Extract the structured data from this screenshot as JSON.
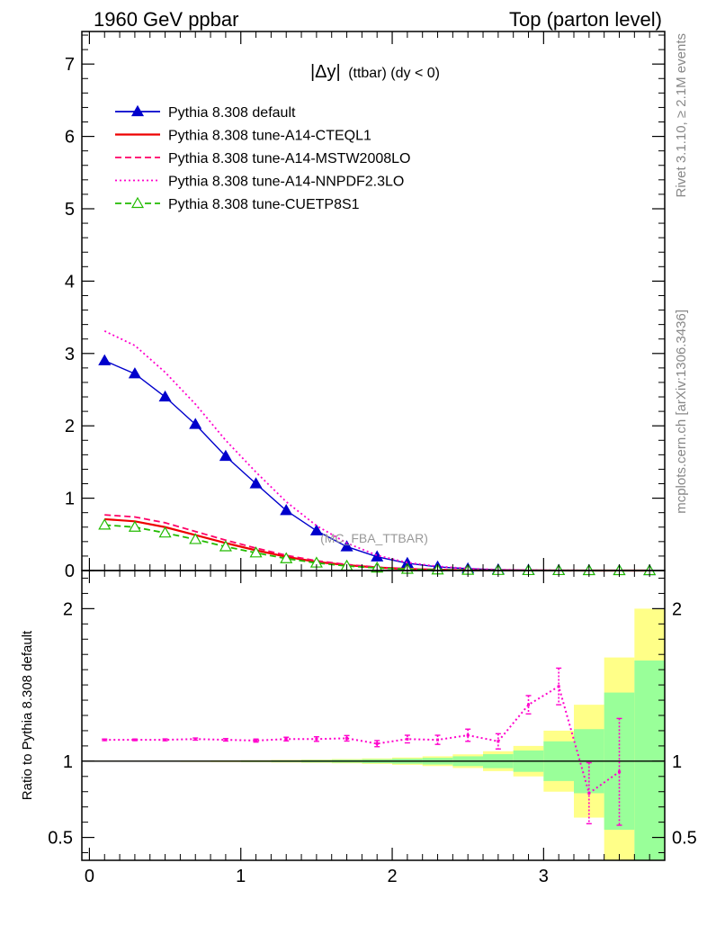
{
  "header": {
    "left": "1960 GeV ppbar",
    "right": "Top (parton level)"
  },
  "side_labels": {
    "rivet": "Rivet 3.1.10, ≥ 2.1M events",
    "mcplots": "mcplots.cern.ch [arXiv:1306.3436]"
  },
  "chart_data": [
    {
      "type": "line",
      "panel": "main",
      "title_main": "|Δy|",
      "title_sub": "(ttbar) (dy < 0)",
      "watermark": "(MC_FBA_TTBAR)",
      "xlim": [
        -0.05,
        3.8
      ],
      "ylim": [
        0,
        7.45
      ],
      "xticks": [
        0,
        1,
        2,
        3
      ],
      "yticks": [
        0,
        1,
        2,
        3,
        4,
        5,
        6,
        7
      ],
      "ytick_labels": [
        "0",
        "1",
        "2",
        "3",
        "4",
        "5",
        "6",
        "7"
      ],
      "legend_position": "top-left",
      "x": [
        0.1,
        0.3,
        0.5,
        0.7,
        0.9,
        1.1,
        1.3,
        1.5,
        1.7,
        1.9,
        2.1,
        2.3,
        2.5,
        2.7,
        2.9,
        3.1,
        3.3,
        3.5,
        3.7
      ],
      "series": [
        {
          "name": "Pythia 8.308 default",
          "color": "#0000cc",
          "dash": "solid",
          "marker": "filled-triangle",
          "values": [
            2.9,
            2.72,
            2.4,
            2.02,
            1.58,
            1.2,
            0.83,
            0.55,
            0.33,
            0.19,
            0.1,
            0.05,
            0.025,
            0.012,
            0.006,
            0.003,
            0.0015,
            0.0008,
            0.0004
          ]
        },
        {
          "name": "Pythia 8.308 tune-A14-CTEQL1",
          "color": "#ee0000",
          "dash": "solid",
          "marker": "none",
          "values": [
            0.71,
            0.68,
            0.6,
            0.49,
            0.38,
            0.28,
            0.19,
            0.12,
            0.075,
            0.042,
            0.022,
            0.011,
            0.005,
            0.0025,
            0.0012,
            0.0006,
            0.0003,
            0.00015,
            0.0001
          ]
        },
        {
          "name": "Pythia 8.308 tune-A14-MSTW2008LO",
          "color": "#ff0066",
          "dash": "dashed",
          "marker": "none",
          "values": [
            0.77,
            0.74,
            0.66,
            0.54,
            0.42,
            0.31,
            0.21,
            0.135,
            0.083,
            0.047,
            0.025,
            0.012,
            0.0058,
            0.0027,
            0.0013,
            0.0006,
            0.0003,
            0.00015,
            0.0001
          ]
        },
        {
          "name": "Pythia 8.308 tune-A14-NNPDF2.3LO",
          "color": "#ff00cc",
          "dash": "dotted",
          "marker": "none",
          "values": [
            3.31,
            3.11,
            2.74,
            2.3,
            1.8,
            1.36,
            0.95,
            0.62,
            0.38,
            0.21,
            0.11,
            0.058,
            0.028,
            0.013,
            0.006,
            0.003,
            0.0015,
            0.0008,
            0.0004
          ]
        },
        {
          "name": "Pythia 8.308 tune-CUETP8S1",
          "color": "#22bb00",
          "dash": "dashed",
          "marker": "open-triangle",
          "values": [
            0.63,
            0.6,
            0.52,
            0.43,
            0.33,
            0.245,
            0.165,
            0.105,
            0.063,
            0.036,
            0.019,
            0.0095,
            0.0045,
            0.0021,
            0.001,
            0.0005,
            0.00025,
            0.00012,
            0.0001
          ]
        }
      ]
    },
    {
      "type": "line",
      "panel": "ratio",
      "ylabel": "Ratio to Pythia 8.308 default",
      "xlim": [
        -0.05,
        3.8
      ],
      "ylim": [
        0.35,
        2.25
      ],
      "xticks": [
        0,
        1,
        2,
        3
      ],
      "xtick_labels": [
        "0",
        "1",
        "2",
        "3"
      ],
      "yticks": [
        0.5,
        1,
        2
      ],
      "ytick_labels": [
        "0.5",
        "1",
        "2"
      ],
      "reference_value": 1,
      "bands": {
        "edges": [
          0.0,
          0.2,
          0.4,
          0.6,
          0.8,
          1.0,
          1.2,
          1.4,
          1.6,
          1.8,
          2.0,
          2.2,
          2.4,
          2.6,
          2.8,
          3.0,
          3.2,
          3.4,
          3.6,
          3.8
        ],
        "outer_color": "#ffff88",
        "inner_color": "#99ff99",
        "outer_halfwidth": [
          0.003,
          0.003,
          0.004,
          0.005,
          0.006,
          0.007,
          0.009,
          0.011,
          0.014,
          0.018,
          0.024,
          0.032,
          0.045,
          0.065,
          0.1,
          0.2,
          0.37,
          0.68,
          1.0
        ],
        "inner_halfwidth": [
          0.002,
          0.002,
          0.003,
          0.003,
          0.004,
          0.005,
          0.006,
          0.008,
          0.01,
          0.013,
          0.017,
          0.022,
          0.032,
          0.046,
          0.07,
          0.13,
          0.21,
          0.45,
          0.66
        ]
      },
      "x": [
        0.1,
        0.3,
        0.5,
        0.7,
        0.9,
        1.1,
        1.3,
        1.5,
        1.7,
        1.9,
        2.1,
        2.3,
        2.5,
        2.7,
        2.9,
        3.1,
        3.3,
        3.5
      ],
      "series": [
        {
          "name": "Pythia 8.308 tune-A14-NNPDF2.3LO",
          "color": "#ff00cc",
          "dash": "dotted",
          "values": [
            1.14,
            1.14,
            1.14,
            1.145,
            1.14,
            1.135,
            1.145,
            1.145,
            1.15,
            1.115,
            1.145,
            1.14,
            1.17,
            1.13,
            1.37,
            1.49,
            0.79,
            0.93
          ],
          "errors": [
            0.005,
            0.005,
            0.006,
            0.007,
            0.008,
            0.01,
            0.012,
            0.015,
            0.018,
            0.02,
            0.025,
            0.03,
            0.04,
            0.05,
            0.06,
            0.12,
            0.2,
            0.35
          ]
        }
      ]
    }
  ]
}
